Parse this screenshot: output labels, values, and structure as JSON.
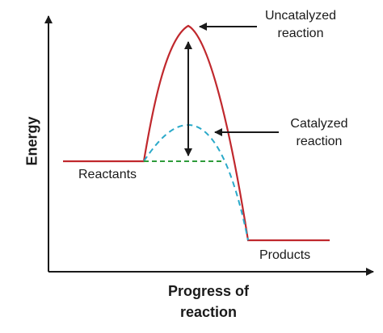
{
  "axes": {
    "y_label": "Energy",
    "x_label_line1": "Progress of",
    "x_label_line2": "reaction"
  },
  "labels": {
    "reactants": "Reactants",
    "products": "Products",
    "uncatalyzed_line1": "Uncatalyzed",
    "uncatalyzed_line2": "reaction",
    "catalyzed_line1": "Catalyzed",
    "catalyzed_line2": "reaction"
  },
  "colors": {
    "uncatalyzed_curve": "#c0282d",
    "catalyzed_curve": "#2aa9c9",
    "reactant_baseline": "#2e9b3a",
    "axis": "#1a1a1a",
    "arrows": "#1a1a1a"
  }
}
